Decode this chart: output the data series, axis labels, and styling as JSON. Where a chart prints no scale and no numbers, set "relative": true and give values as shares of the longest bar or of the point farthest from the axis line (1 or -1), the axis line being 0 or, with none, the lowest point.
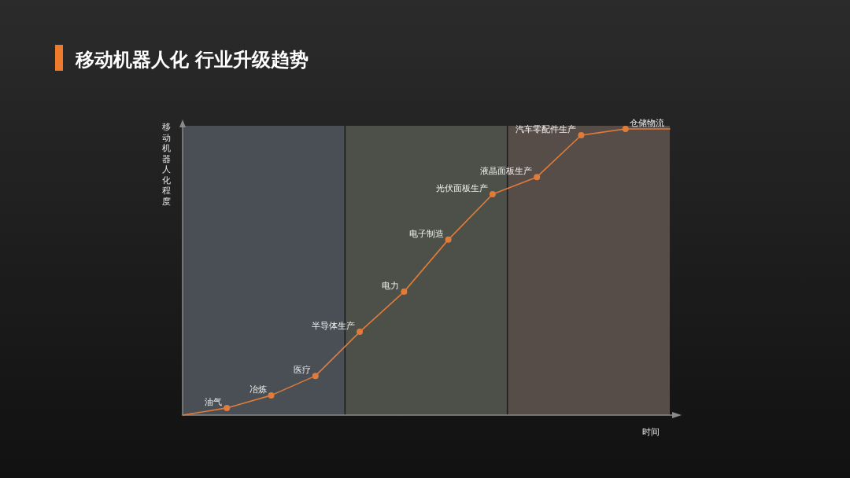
{
  "chart_data": {
    "type": "line",
    "title": "移动机器人化 行业升级趋势",
    "xlabel": "时间",
    "ylabel": "移动机器人化程度",
    "relative": true,
    "categories": [
      null,
      null,
      null,
      null,
      null,
      null,
      null,
      null,
      null,
      null,
      null,
      null
    ],
    "series": [
      {
        "color": "#e07b39",
        "marker": "circle",
        "values": [
          0,
          0.025,
          0.069,
          0.137,
          0.291,
          0.431,
          0.613,
          0.772,
          0.832,
          0.978,
          1,
          1
        ]
      }
    ],
    "annotations": [
      "油气",
      "冶炼",
      "医疗",
      "半导体生产",
      "电力",
      "电子制造",
      "光伏面板生产",
      "液晶面板生产",
      "汽车零配件生产",
      "仓储物流"
    ]
  }
}
